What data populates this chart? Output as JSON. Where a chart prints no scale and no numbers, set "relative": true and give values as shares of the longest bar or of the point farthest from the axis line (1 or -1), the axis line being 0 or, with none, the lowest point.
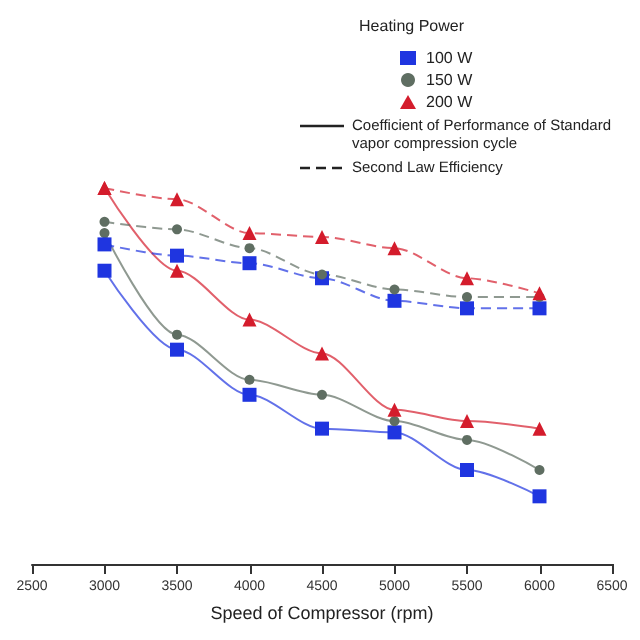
{
  "chart_data": {
    "type": "line",
    "relative": true,
    "xlabel": "Speed of Compressor (rpm)",
    "legend_title": "Heating Power",
    "legend": "top right",
    "grid": false,
    "x": [
      3000,
      3500,
      4000,
      4500,
      5000,
      5500,
      6000
    ],
    "xlim": [
      2500,
      6500
    ],
    "xticks": [
      2500,
      3000,
      3500,
      4000,
      4500,
      5000,
      5500,
      6000,
      6500
    ],
    "annotations": [
      "Coefficient of Performance of Standard vapor compression cycle",
      "Second Law Efficiency"
    ],
    "series": [
      {
        "name": "100 W",
        "color": "#1f35e0",
        "marker": "square",
        "line_style": "solid",
        "values": [
          0.78,
          0.57,
          0.45,
          0.36,
          0.35,
          0.25,
          0.18
        ]
      },
      {
        "name": "150 W",
        "color": "#5f6e62",
        "marker": "circle",
        "line_style": "solid",
        "values": [
          0.88,
          0.61,
          0.49,
          0.45,
          0.38,
          0.33,
          0.25
        ]
      },
      {
        "name": "200 W",
        "color": "#d41c2c",
        "marker": "triangle",
        "line_style": "solid",
        "values": [
          1,
          0.78,
          0.65,
          0.56,
          0.41,
          0.38,
          0.36
        ]
      },
      {
        "color": "#1f35e0",
        "marker": "square",
        "line_style": "dashed",
        "values": [
          0.85,
          0.82,
          0.8,
          0.76,
          0.7,
          0.68,
          0.68
        ]
      },
      {
        "color": "#5f6e62",
        "marker": "circle",
        "line_style": "dashed",
        "values": [
          0.91,
          0.89,
          0.84,
          0.77,
          0.73,
          0.71,
          0.71
        ]
      },
      {
        "color": "#d41c2c",
        "marker": "triangle",
        "line_style": "dashed",
        "values": [
          1,
          0.97,
          0.88,
          0.87,
          0.84,
          0.76,
          0.72
        ]
      }
    ]
  }
}
